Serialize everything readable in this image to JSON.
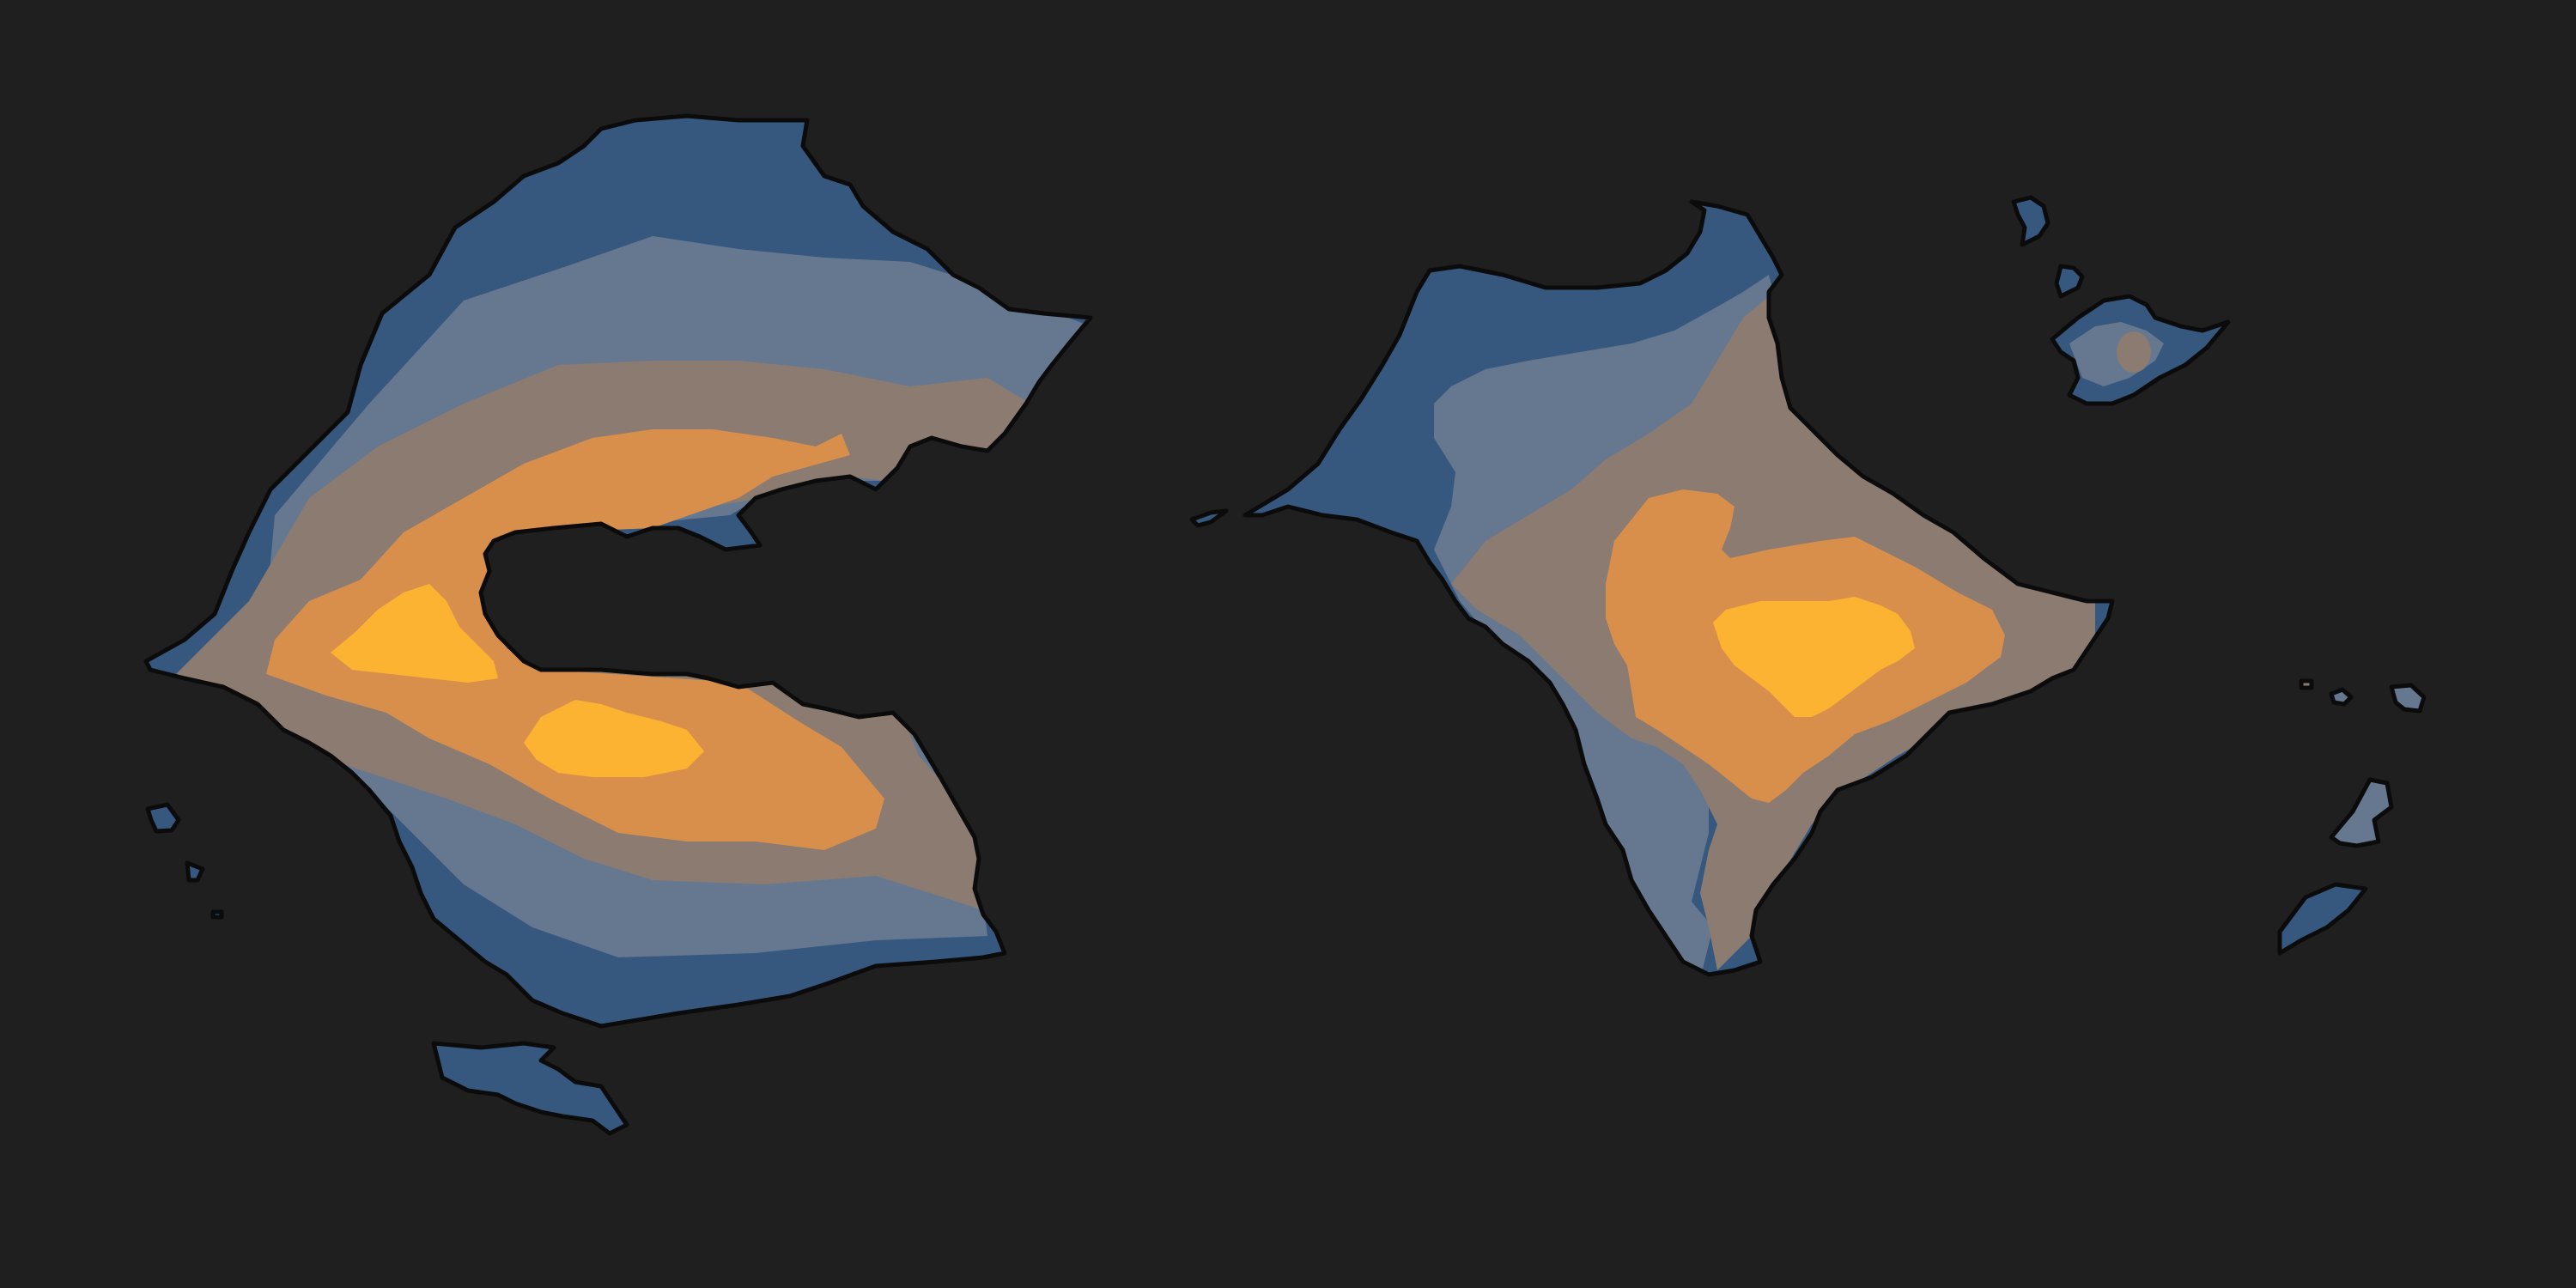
{
  "map": {
    "type": "thematic-relief",
    "legend": "none",
    "background_color": "#1f1f1f",
    "coastline_color": "#0b0b0b",
    "color_bands": [
      "#36587e",
      "#667790",
      "#8b7b71",
      "#d98f4c",
      "#fbb331"
    ]
  },
  "features": [
    {
      "name": "western-continent",
      "kind": "continent",
      "band_count": 5
    },
    {
      "name": "eastern-continent",
      "kind": "continent",
      "band_count": 5
    },
    {
      "name": "southern-island",
      "kind": "island",
      "band_count": 1
    },
    {
      "name": "northeast-island",
      "kind": "island",
      "band_count": 3
    }
  ]
}
